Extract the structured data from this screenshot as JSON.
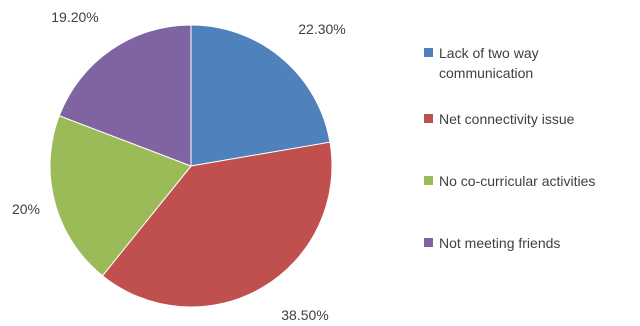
{
  "chart_data": {
    "type": "pie",
    "title": "",
    "categories": [
      "Lack of two way communication",
      "Net connectivity issue",
      "No co-curricular activities",
      "Not meeting friends"
    ],
    "values": [
      22.3,
      38.5,
      20,
      19.2
    ],
    "data_labels": [
      "22.30%",
      "38.50%",
      "20%",
      "19.20%"
    ],
    "colors": [
      "#4F81BD",
      "#C0504D",
      "#9BBB59",
      "#8064A2"
    ],
    "legend": {
      "position": "right",
      "entries": [
        {
          "lines": [
            "Lack of two way",
            "communication"
          ],
          "color": "#4F81BD"
        },
        {
          "lines": [
            "Net connectivity issue"
          ],
          "color": "#C0504D"
        },
        {
          "lines": [
            "No co-curricular activities"
          ],
          "color": "#9BBB59"
        },
        {
          "lines": [
            "Not meeting friends"
          ],
          "color": "#8064A2"
        }
      ]
    }
  }
}
